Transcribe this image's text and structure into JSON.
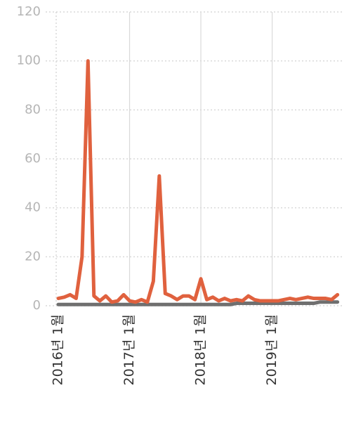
{
  "chart_data": {
    "type": "line",
    "categories": [
      "2016년 1월",
      null,
      null,
      null,
      null,
      null,
      null,
      null,
      null,
      null,
      null,
      null,
      "2017년 1월",
      null,
      null,
      null,
      null,
      null,
      null,
      null,
      null,
      null,
      null,
      null,
      "2018년 1월",
      null,
      null,
      null,
      null,
      null,
      null,
      null,
      null,
      null,
      null,
      null,
      "2019년 1월",
      null,
      null,
      null,
      null,
      null,
      null,
      null,
      null,
      null,
      null,
      null
    ],
    "series": [
      {
        "color": "#e0613e",
        "values": [
          3,
          3.5,
          4.5,
          3,
          20,
          100,
          4,
          2,
          4,
          1.5,
          2,
          4.5,
          2,
          1.5,
          2.5,
          1.5,
          10,
          53,
          5,
          4,
          2.5,
          4,
          4,
          2.5,
          11,
          2.5,
          3.5,
          2,
          3,
          2,
          2.5,
          2,
          4,
          2.5,
          2,
          2,
          2,
          2,
          2.5,
          3,
          2.5,
          3,
          3.5,
          3,
          3,
          3,
          2.5,
          4.5
        ]
      },
      {
        "color": "#6f6f6f",
        "values": [
          0.5,
          0.5,
          0.5,
          0.5,
          0.5,
          0.5,
          0.5,
          0.5,
          0.5,
          0.5,
          0.5,
          0.5,
          0.5,
          0.5,
          0.5,
          0.5,
          0.5,
          0.5,
          0.5,
          0.5,
          0.5,
          0.5,
          0.5,
          0.5,
          0.5,
          0.5,
          0.5,
          0.5,
          0.5,
          0.5,
          1,
          1,
          1,
          1,
          1,
          1,
          1,
          1,
          1,
          1,
          1,
          1,
          1,
          1,
          1.5,
          1.5,
          1.5,
          1.5
        ]
      }
    ],
    "ylim": [
      0,
      120
    ],
    "yticks": [
      0,
      20,
      40,
      60,
      80,
      100,
      120
    ],
    "grid": true
  }
}
